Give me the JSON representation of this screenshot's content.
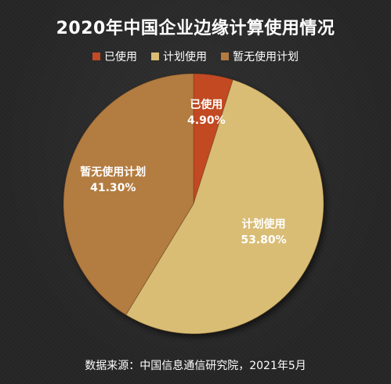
{
  "chart_data": {
    "type": "pie",
    "title": "2020年中国企业边缘计算使用情况",
    "categories": [
      "已使用",
      "计划使用",
      "暂无使用计划"
    ],
    "values": [
      4.9,
      53.8,
      41.3
    ],
    "labels": [
      "4.90%",
      "53.80%",
      "41.30%"
    ],
    "colors": [
      "#c24a24",
      "#d9bd75",
      "#b37b3f"
    ],
    "legend": "top-center",
    "source": "数据来源：中国信息通信研究院，2021年5月"
  }
}
